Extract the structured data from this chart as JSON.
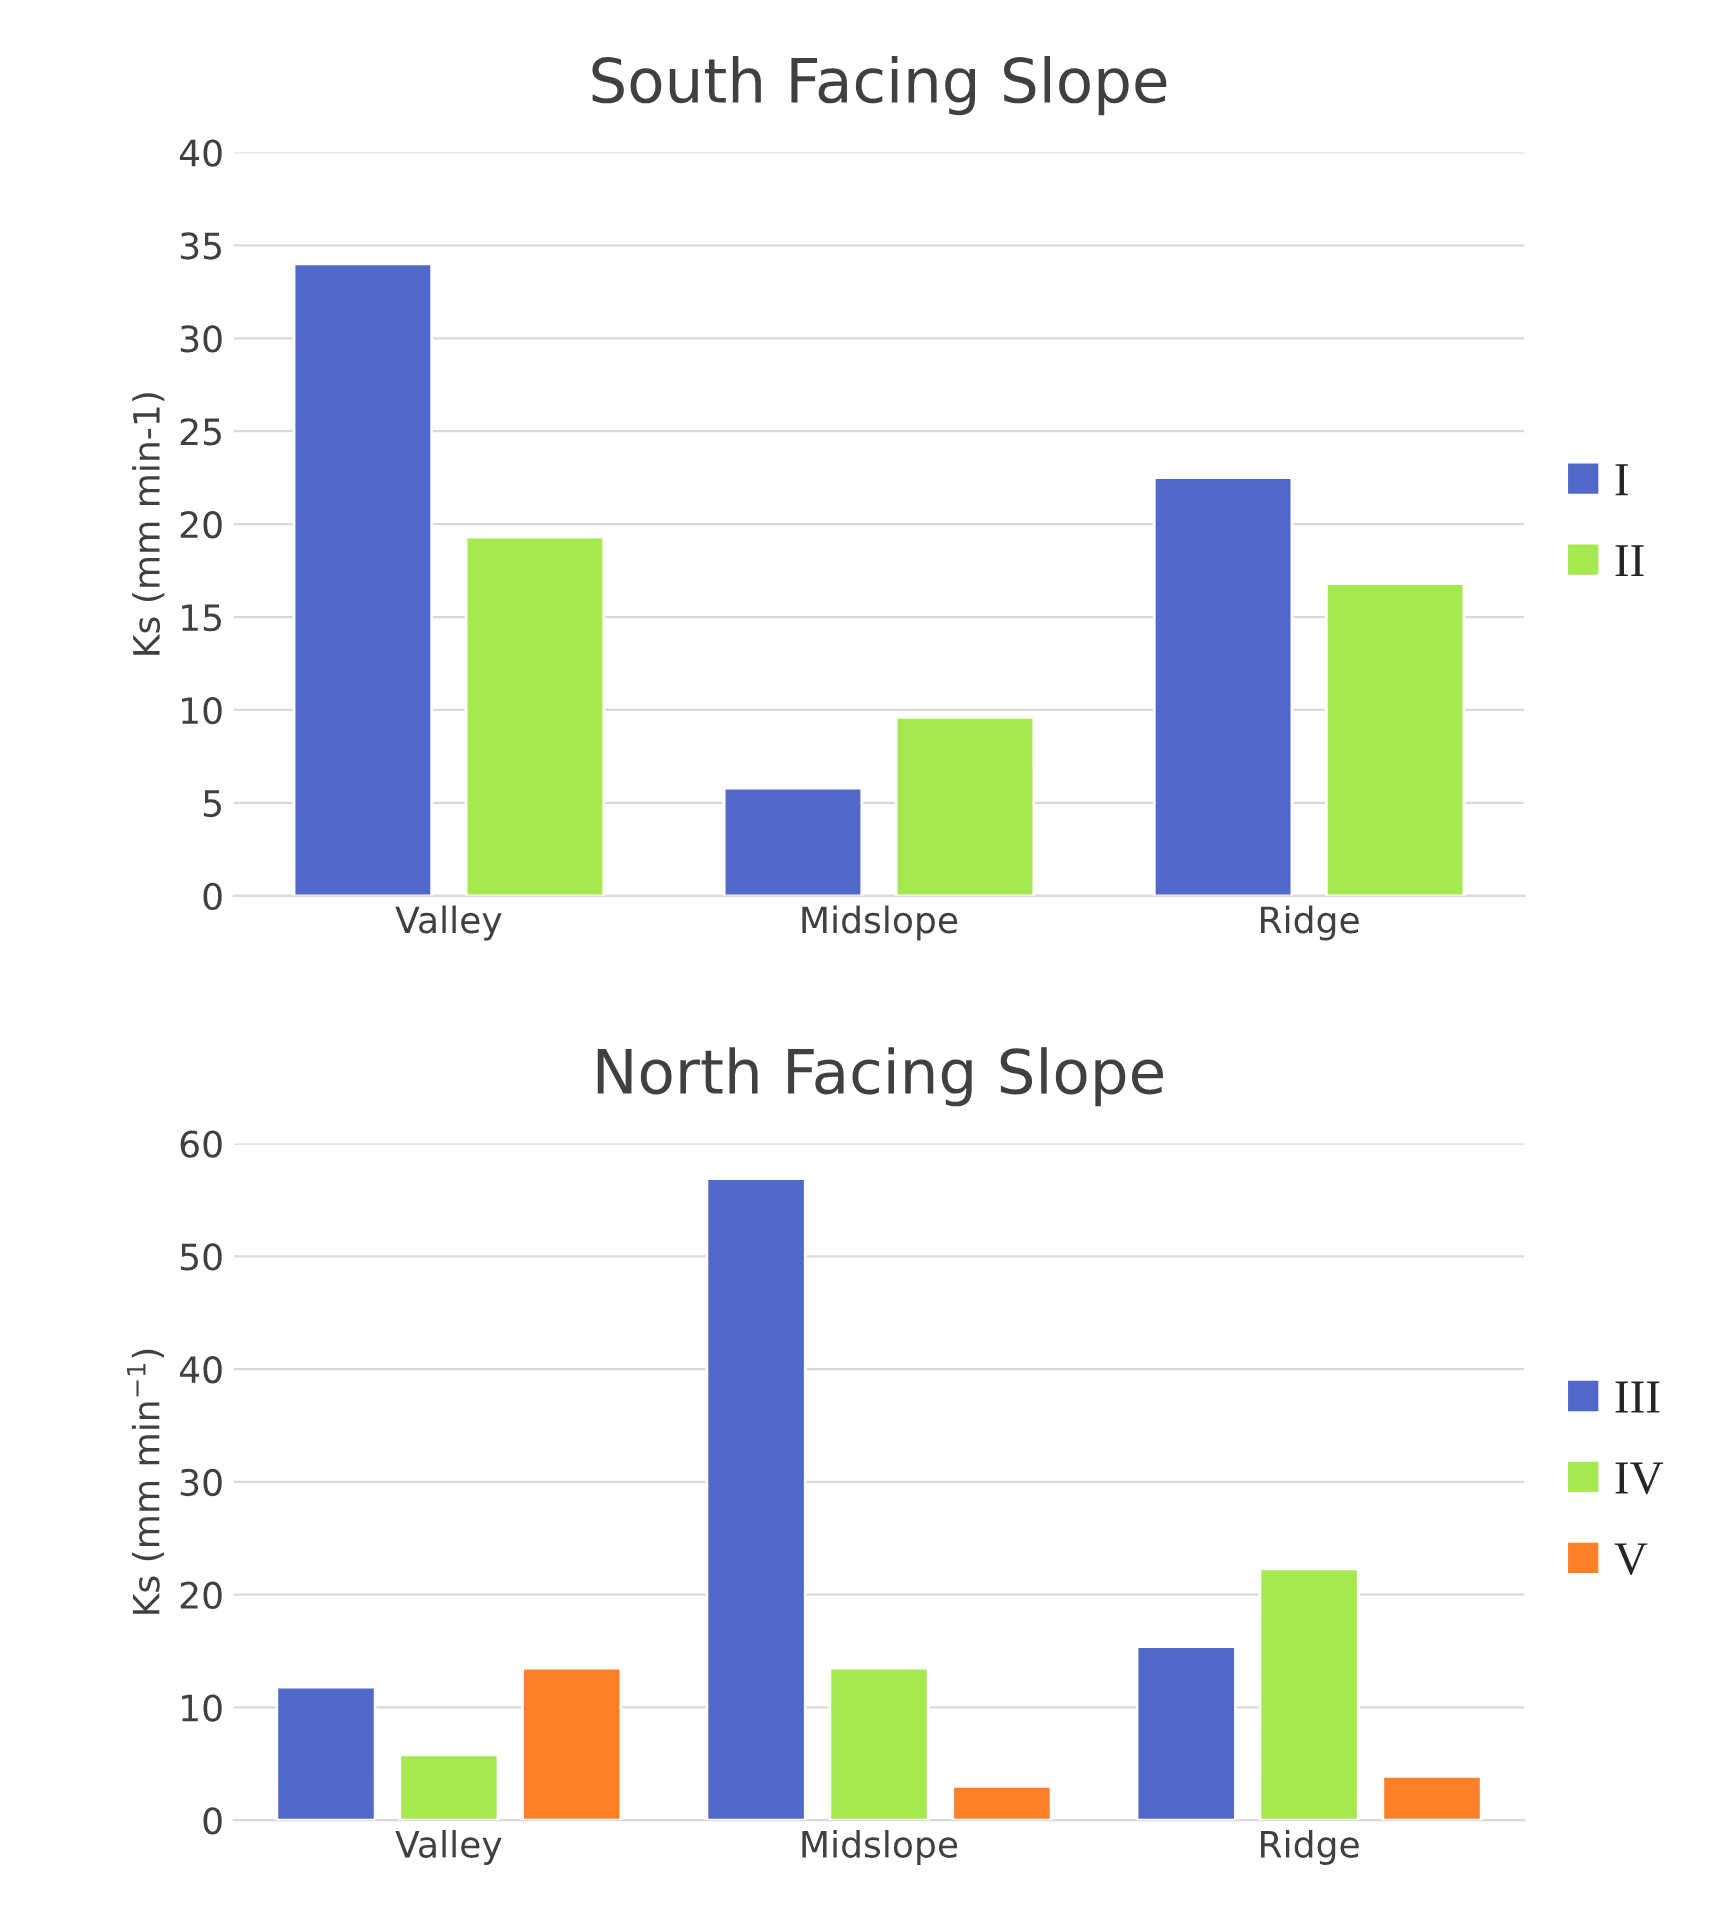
{
  "chart_data": [
    {
      "type": "bar",
      "title": "South Facing Slope",
      "ylabel": "Ks (mm min-1)",
      "categories": [
        "Valley",
        "Midslope",
        "Ridge"
      ],
      "series": [
        {
          "name": "I",
          "color": "#4f68c9",
          "values": [
            34.0,
            5.8,
            22.5
          ]
        },
        {
          "name": "II",
          "color": "#a6e84f",
          "values": [
            19.3,
            9.6,
            16.8
          ]
        }
      ],
      "ylim": [
        0,
        40
      ],
      "yticks": [
        0,
        5,
        10,
        15,
        20,
        25,
        30,
        35,
        40
      ],
      "grid": "y",
      "legend": "right"
    },
    {
      "type": "bar",
      "title": "North Facing Slope",
      "ylabel": "Ks (mm min$^{−1}$)",
      "categories": [
        "Valley",
        "Midslope",
        "Ridge"
      ],
      "series": [
        {
          "name": "III",
          "color": "#4f68c9",
          "values": [
            11.8,
            56.9,
            15.4
          ]
        },
        {
          "name": "IV",
          "color": "#a6e84f",
          "values": [
            5.8,
            13.5,
            22.3
          ]
        },
        {
          "name": "V",
          "color": "#fd7f27",
          "values": [
            13.5,
            3.0,
            3.9
          ]
        }
      ],
      "ylim": [
        0,
        60
      ],
      "yticks": [
        0,
        10,
        20,
        30,
        40,
        50,
        60
      ],
      "grid": "y",
      "legend": "right"
    }
  ]
}
